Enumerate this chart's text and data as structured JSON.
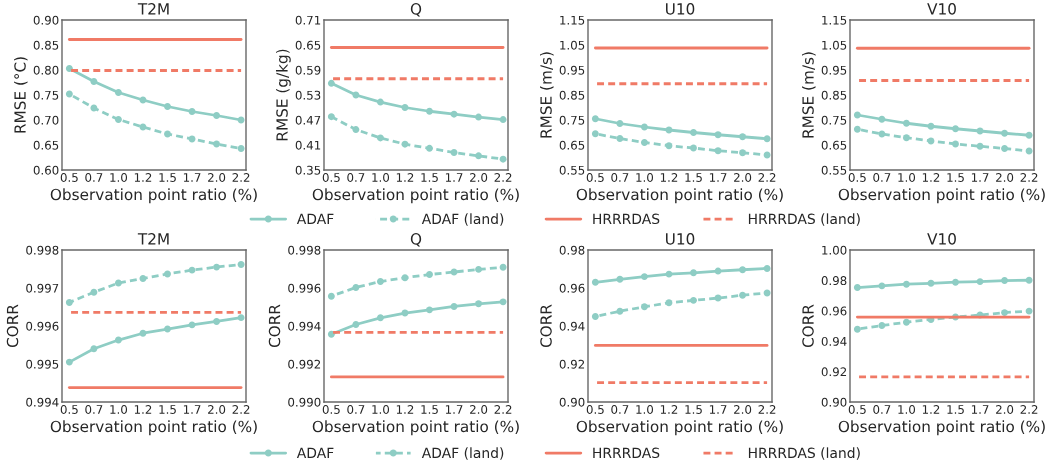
{
  "chart_data": [
    {
      "type": "line",
      "title": "T2M",
      "xlabel": "Observation point ratio (%)",
      "ylabel": "RMSE (°C)",
      "categories": [
        "0.5",
        "0.7",
        "1.0",
        "1.2",
        "1.5",
        "1.7",
        "2.0",
        "2.2"
      ],
      "ylim": [
        0.6,
        0.9
      ],
      "yticks": [
        {
          "value": 0.6,
          "label": "0.60"
        },
        {
          "value": 0.65,
          "label": "0.65"
        },
        {
          "value": 0.7,
          "label": "0.70"
        },
        {
          "value": 0.75,
          "label": "0.75"
        },
        {
          "value": 0.8,
          "label": "0.80"
        },
        {
          "value": 0.85,
          "label": "0.85"
        },
        {
          "value": 0.9,
          "label": "0.90"
        }
      ],
      "grid": false,
      "legend": "bottom",
      "series": [
        {
          "name": "ADAF",
          "color": "#8ecdc4",
          "marker": "circle",
          "line_style": "solid",
          "values": [
            0.803,
            0.777,
            0.755,
            0.74,
            0.727,
            0.717,
            0.709,
            0.7
          ]
        },
        {
          "name": "ADAF (land)",
          "color": "#8ecdc4",
          "marker": "circle",
          "line_style": "dashed",
          "values": [
            0.752,
            0.724,
            0.701,
            0.686,
            0.672,
            0.662,
            0.652,
            0.643
          ]
        },
        {
          "name": "HRRRDAS",
          "color": "#f07a66",
          "marker": "none",
          "line_style": "solid",
          "values": [
            0.861,
            0.861,
            0.861,
            0.861,
            0.861,
            0.861,
            0.861,
            0.861
          ]
        },
        {
          "name": "HRRRDAS (land)",
          "color": "#f07a66",
          "marker": "none",
          "line_style": "dashed",
          "values": [
            0.799,
            0.799,
            0.799,
            0.799,
            0.799,
            0.799,
            0.799,
            0.799
          ]
        }
      ]
    },
    {
      "type": "line",
      "title": "Q",
      "xlabel": "Observation point ratio (%)",
      "ylabel": "RMSE (g/kg)",
      "categories": [
        "0.5",
        "0.7",
        "1.0",
        "1.2",
        "1.5",
        "1.7",
        "2.0",
        "2.2"
      ],
      "ylim": [
        0.35,
        0.71
      ],
      "yticks": [
        0.35,
        0.41,
        0.47,
        0.53,
        0.59,
        0.65,
        0.71
      ],
      "grid": false,
      "series": [
        {
          "color": "#8ecdc4",
          "marker": "circle",
          "line_style": "solid",
          "values": [
            0.558,
            0.53,
            0.513,
            0.5,
            0.491,
            0.484,
            0.477,
            0.471
          ]
        },
        {
          "color": "#8ecdc4",
          "marker": "circle",
          "line_style": "dashed",
          "values": [
            0.478,
            0.447,
            0.427,
            0.412,
            0.402,
            0.392,
            0.384,
            0.376
          ]
        },
        {
          "color": "#f07a66",
          "marker": "none",
          "line_style": "solid",
          "values": [
            0.644,
            0.644,
            0.644,
            0.644,
            0.644,
            0.644,
            0.644,
            0.644
          ]
        },
        {
          "color": "#f07a66",
          "marker": "none",
          "line_style": "dashed",
          "values": [
            0.569,
            0.569,
            0.569,
            0.569,
            0.569,
            0.569,
            0.569,
            0.569
          ]
        }
      ]
    },
    {
      "type": "line",
      "title": "U10",
      "xlabel": "Observation point ratio (%)",
      "ylabel": "RMSE (m/s)",
      "categories": [
        "0.5",
        "0.7",
        "1.0",
        "1.2",
        "1.5",
        "1.7",
        "2.0",
        "2.2"
      ],
      "ylim": [
        0.55,
        1.15
      ],
      "yticks": [
        0.55,
        0.65,
        0.75,
        0.85,
        0.95,
        1.05,
        1.15
      ],
      "grid": false,
      "series": [
        {
          "color": "#8ecdc4",
          "marker": "circle",
          "line_style": "solid",
          "values": [
            0.755,
            0.736,
            0.722,
            0.71,
            0.7,
            0.691,
            0.683,
            0.675
          ]
        },
        {
          "color": "#8ecdc4",
          "marker": "circle",
          "line_style": "dashed",
          "values": [
            0.695,
            0.676,
            0.66,
            0.647,
            0.638,
            0.627,
            0.619,
            0.61
          ]
        },
        {
          "color": "#f07a66",
          "marker": "none",
          "line_style": "solid",
          "values": [
            1.038,
            1.038,
            1.038,
            1.038,
            1.038,
            1.038,
            1.038,
            1.038
          ]
        },
        {
          "color": "#f07a66",
          "marker": "none",
          "line_style": "dashed",
          "values": [
            0.895,
            0.895,
            0.895,
            0.895,
            0.895,
            0.895,
            0.895,
            0.895
          ]
        }
      ]
    },
    {
      "type": "line",
      "title": "V10",
      "xlabel": "Observation point ratio (%)",
      "ylabel": "RMSE (m/s)",
      "categories": [
        "0.5",
        "0.7",
        "1.0",
        "1.2",
        "1.5",
        "1.7",
        "2.0",
        "2.2"
      ],
      "ylim": [
        0.55,
        1.15
      ],
      "yticks": [
        0.55,
        0.65,
        0.75,
        0.85,
        0.95,
        1.05,
        1.15
      ],
      "grid": false,
      "series": [
        {
          "color": "#8ecdc4",
          "marker": "circle",
          "line_style": "solid",
          "values": [
            0.77,
            0.753,
            0.737,
            0.725,
            0.715,
            0.706,
            0.697,
            0.689
          ]
        },
        {
          "color": "#8ecdc4",
          "marker": "circle",
          "line_style": "dashed",
          "values": [
            0.713,
            0.694,
            0.679,
            0.666,
            0.654,
            0.645,
            0.636,
            0.626
          ]
        },
        {
          "color": "#f07a66",
          "marker": "none",
          "line_style": "solid",
          "values": [
            1.037,
            1.037,
            1.037,
            1.037,
            1.037,
            1.037,
            1.037,
            1.037
          ]
        },
        {
          "color": "#f07a66",
          "marker": "none",
          "line_style": "dashed",
          "values": [
            0.908,
            0.908,
            0.908,
            0.908,
            0.908,
            0.908,
            0.908,
            0.908
          ]
        }
      ]
    },
    {
      "type": "line",
      "title": "T2M",
      "xlabel": "Observation point ratio (%)",
      "ylabel": "CORR",
      "categories": [
        "0.5",
        "0.7",
        "1.0",
        "1.2",
        "1.5",
        "1.7",
        "2.0",
        "2.2"
      ],
      "ylim": [
        0.994,
        0.998
      ],
      "yticks": [
        0.994,
        0.995,
        0.996,
        0.997,
        0.998
      ],
      "grid": false,
      "legend": "bottom",
      "series": [
        {
          "name": "ADAF",
          "color": "#8ecdc4",
          "marker": "circle",
          "line_style": "solid",
          "values": [
            0.99505,
            0.9954,
            0.99563,
            0.99581,
            0.99592,
            0.99603,
            0.99612,
            0.99622
          ]
        },
        {
          "name": "ADAF (land)",
          "color": "#8ecdc4",
          "marker": "circle",
          "line_style": "dashed",
          "values": [
            0.99662,
            0.99689,
            0.99713,
            0.99725,
            0.99737,
            0.99747,
            0.99755,
            0.99762
          ]
        },
        {
          "name": "HRRRDAS",
          "color": "#f07a66",
          "marker": "none",
          "line_style": "solid",
          "values": [
            0.99438,
            0.99438,
            0.99438,
            0.99438,
            0.99438,
            0.99438,
            0.99438,
            0.99438
          ]
        },
        {
          "name": "HRRRDAS (land)",
          "color": "#f07a66",
          "marker": "none",
          "line_style": "dashed",
          "values": [
            0.99636,
            0.99636,
            0.99636,
            0.99636,
            0.99636,
            0.99636,
            0.99636,
            0.99636
          ]
        }
      ]
    },
    {
      "type": "line",
      "title": "Q",
      "xlabel": "Observation point ratio (%)",
      "ylabel": "CORR",
      "categories": [
        "0.5",
        "0.7",
        "1.0",
        "1.2",
        "1.5",
        "1.7",
        "2.0",
        "2.2"
      ],
      "ylim": [
        0.99,
        0.998
      ],
      "yticks": [
        {
          "value": 0.99,
          "label": "0.990"
        },
        0.992,
        0.994,
        0.996,
        0.998
      ],
      "grid": false,
      "series": [
        {
          "color": "#8ecdc4",
          "marker": "circle",
          "line_style": "solid",
          "values": [
            0.99357,
            0.99408,
            0.99443,
            0.99468,
            0.99485,
            0.99503,
            0.99517,
            0.99527
          ]
        },
        {
          "color": "#8ecdc4",
          "marker": "circle",
          "line_style": "dashed",
          "values": [
            0.99557,
            0.99603,
            0.99634,
            0.99654,
            0.99671,
            0.99684,
            0.99698,
            0.99709
          ]
        },
        {
          "color": "#f07a66",
          "marker": "none",
          "line_style": "solid",
          "values": [
            0.99132,
            0.99132,
            0.99132,
            0.99132,
            0.99132,
            0.99132,
            0.99132,
            0.99132
          ]
        },
        {
          "color": "#f07a66",
          "marker": "none",
          "line_style": "dashed",
          "values": [
            0.99366,
            0.99366,
            0.99366,
            0.99366,
            0.99366,
            0.99366,
            0.99366,
            0.99366
          ]
        }
      ]
    },
    {
      "type": "line",
      "title": "U10",
      "xlabel": "Observation point ratio (%)",
      "ylabel": "CORR",
      "categories": [
        "0.5",
        "0.7",
        "1.0",
        "1.2",
        "1.5",
        "1.7",
        "2.0",
        "2.2"
      ],
      "ylim": [
        0.9,
        0.98
      ],
      "yticks": [
        {
          "value": 0.9,
          "label": "0.90"
        },
        0.92,
        0.94,
        0.96,
        0.98
      ],
      "grid": false,
      "series": [
        {
          "color": "#8ecdc4",
          "marker": "circle",
          "line_style": "solid",
          "values": [
            0.963,
            0.9646,
            0.966,
            0.9673,
            0.968,
            0.9689,
            0.9696,
            0.9703
          ]
        },
        {
          "color": "#8ecdc4",
          "marker": "circle",
          "line_style": "dashed",
          "values": [
            0.945,
            0.9478,
            0.9501,
            0.9522,
            0.9535,
            0.9547,
            0.9562,
            0.9574
          ]
        },
        {
          "color": "#f07a66",
          "marker": "none",
          "line_style": "solid",
          "values": [
            0.9298,
            0.9298,
            0.9298,
            0.9298,
            0.9298,
            0.9298,
            0.9298,
            0.9298
          ]
        },
        {
          "color": "#f07a66",
          "marker": "none",
          "line_style": "dashed",
          "values": [
            0.9102,
            0.9102,
            0.9102,
            0.9102,
            0.9102,
            0.9102,
            0.9102,
            0.9102
          ]
        }
      ]
    },
    {
      "type": "line",
      "title": "V10",
      "xlabel": "Observation point ratio (%)",
      "ylabel": "CORR",
      "categories": [
        "0.5",
        "0.7",
        "1.0",
        "1.2",
        "1.5",
        "1.7",
        "2.0",
        "2.2"
      ],
      "ylim": [
        0.9,
        1.0
      ],
      "yticks": [
        {
          "value": 0.9,
          "label": "0.90"
        },
        0.92,
        0.94,
        0.96,
        0.98,
        {
          "value": 1.0,
          "label": "1.00"
        }
      ],
      "grid": false,
      "series": [
        {
          "color": "#8ecdc4",
          "marker": "circle",
          "line_style": "solid",
          "values": [
            0.9753,
            0.9764,
            0.9775,
            0.9781,
            0.9788,
            0.9792,
            0.9799,
            0.9801
          ]
        },
        {
          "color": "#8ecdc4",
          "marker": "circle",
          "line_style": "dashed",
          "values": [
            0.9479,
            0.9503,
            0.9525,
            0.9543,
            0.9559,
            0.9572,
            0.9588,
            0.9598
          ]
        },
        {
          "color": "#f07a66",
          "marker": "none",
          "line_style": "solid",
          "values": [
            0.9559,
            0.9559,
            0.9559,
            0.9559,
            0.9559,
            0.9559,
            0.9559,
            0.9559
          ]
        },
        {
          "color": "#f07a66",
          "marker": "none",
          "line_style": "dashed",
          "values": [
            0.9166,
            0.9166,
            0.9166,
            0.9166,
            0.9166,
            0.9166,
            0.9166,
            0.9166
          ]
        }
      ]
    }
  ]
}
